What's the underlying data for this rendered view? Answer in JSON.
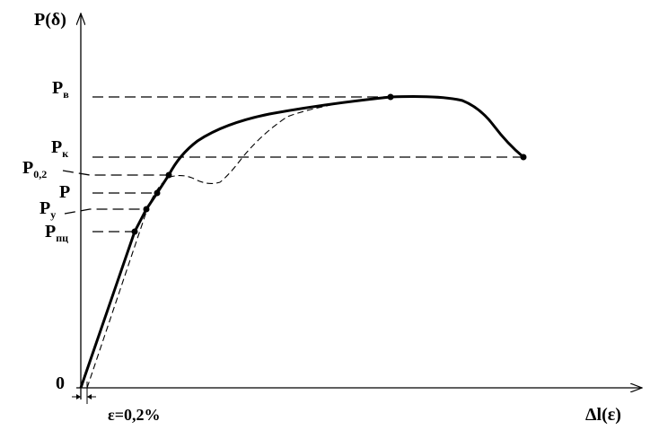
{
  "axes": {
    "y_label": "P(δ)",
    "x_label": "Δl(ε)",
    "origin": "0",
    "offset_label": "ε=0,2%"
  },
  "levels": [
    {
      "symbol": "P",
      "subscript": "в"
    },
    {
      "symbol": "P",
      "subscript": "к"
    },
    {
      "symbol": "P",
      "subscript": "0,2"
    },
    {
      "symbol": "P"
    },
    {
      "symbol": "P",
      "subscript": "у"
    },
    {
      "symbol": "P",
      "subscript": "пц"
    }
  ]
}
